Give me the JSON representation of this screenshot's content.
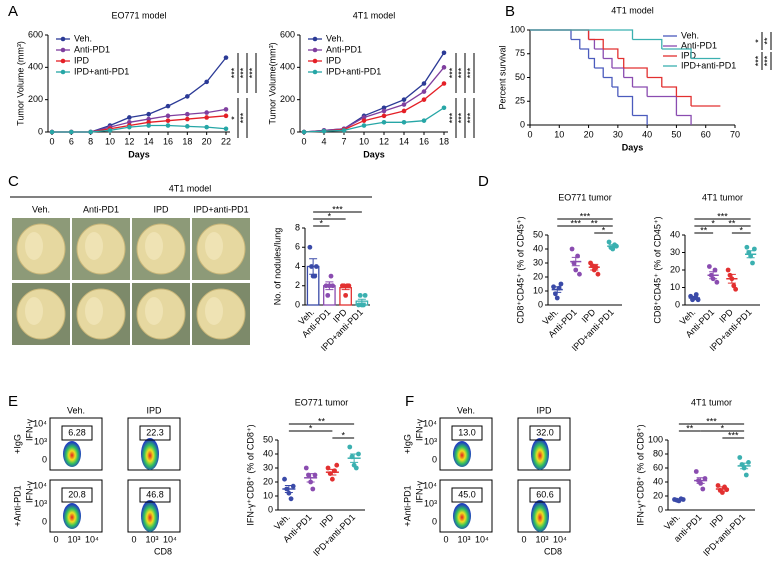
{
  "panels": {
    "letters": [
      "A",
      "B",
      "C",
      "D",
      "E",
      "F"
    ]
  },
  "photo": {
    "title": "4T1 model",
    "labels": [
      "Veh.",
      "Anti-PD1",
      "IPD",
      "IPD+anti-PD1"
    ]
  },
  "flow": [
    {
      "columns": [
        "Veh.",
        "IPD"
      ],
      "rows": [
        "+IgG",
        "+Anti-PD1"
      ],
      "gates": [
        "6.28",
        "22.3",
        "20.8",
        "46.8"
      ],
      "y_label": "IFN-γ",
      "x_label": "CD8",
      "y_ticks": [
        "10⁴",
        "10³",
        "0"
      ],
      "x_ticks": [
        "0",
        "10³",
        "10⁴"
      ]
    },
    {
      "columns": [
        "Veh.",
        "IPD"
      ],
      "rows": [
        "+IgG",
        "+Anti-PD1"
      ],
      "gates": [
        "13.0",
        "32.0",
        "45.0",
        "60.6"
      ],
      "y_label": "IFN-γ",
      "x_label": "CD8",
      "y_ticks": [
        "10⁴",
        "10³",
        "0"
      ],
      "x_ticks": [
        "0",
        "10³",
        "10⁴"
      ]
    }
  ],
  "chart_data": [
    {
      "type": "line",
      "title": "EO771 model",
      "x_label": "Days",
      "y_label": "Tumor Volume (mm³)",
      "categories": [
        "0",
        "6",
        "8",
        "10",
        "12",
        "14",
        "16",
        "18",
        "20",
        "22"
      ],
      "series": [
        {
          "name": "Veh.",
          "color": "#2b3a96",
          "values": [
            0,
            0,
            0,
            40,
            90,
            110,
            160,
            220,
            310,
            460
          ]
        },
        {
          "name": "Anti-PD1",
          "color": "#7f3f9f",
          "values": [
            0,
            0,
            0,
            30,
            60,
            80,
            100,
            110,
            120,
            140
          ]
        },
        {
          "name": "IPD",
          "color": "#e41f26",
          "values": [
            0,
            0,
            0,
            20,
            40,
            60,
            70,
            80,
            90,
            100
          ]
        },
        {
          "name": "IPD+anti-PD1",
          "color": "#26a6a6",
          "values": [
            0,
            0,
            0,
            10,
            30,
            40,
            40,
            35,
            30,
            20
          ]
        }
      ],
      "ylim": [
        0,
        600
      ],
      "yticks": [
        0,
        200,
        400,
        600
      ],
      "annotations": [
        "***",
        "***",
        "***",
        "*",
        "***"
      ]
    },
    {
      "type": "line",
      "title": "4T1 model",
      "x_label": "Days",
      "y_label": "Tumor Volume(mm³)",
      "categories": [
        "0",
        "4",
        "7",
        "10",
        "12",
        "14",
        "16",
        "18"
      ],
      "series": [
        {
          "name": "Veh.",
          "color": "#2b3a96",
          "values": [
            0,
            10,
            20,
            100,
            150,
            200,
            300,
            490
          ]
        },
        {
          "name": "Anti-PD1",
          "color": "#7f3f9f",
          "values": [
            0,
            10,
            20,
            90,
            130,
            170,
            250,
            400
          ]
        },
        {
          "name": "IPD",
          "color": "#e41f26",
          "values": [
            0,
            5,
            15,
            70,
            100,
            130,
            200,
            300
          ]
        },
        {
          "name": "IPD+anti-PD1",
          "color": "#26a6a6",
          "values": [
            0,
            5,
            10,
            40,
            60,
            60,
            70,
            150
          ]
        }
      ],
      "ylim": [
        0,
        600
      ],
      "yticks": [
        0,
        200,
        400,
        600
      ],
      "annotations": [
        "***",
        "***",
        "***",
        "***",
        "***",
        "***"
      ]
    },
    {
      "type": "step",
      "title": "4T1 model",
      "x_label": "Days",
      "y_label": "Percent survival",
      "series": [
        {
          "name": "Veh.",
          "color": "#4b5bbd",
          "x": [
            0,
            14,
            17,
            20,
            22,
            25,
            28,
            30,
            35,
            40
          ],
          "values": [
            100,
            90,
            80,
            70,
            60,
            50,
            40,
            30,
            10,
            0
          ]
        },
        {
          "name": "Anti-PD1",
          "color": "#8a4cb0",
          "x": [
            0,
            20,
            22,
            25,
            28,
            32,
            35,
            40,
            50,
            55
          ],
          "values": [
            100,
            90,
            80,
            70,
            60,
            50,
            40,
            30,
            10,
            0
          ]
        },
        {
          "name": "IPD",
          "color": "#e23030",
          "x": [
            0,
            20,
            25,
            30,
            32,
            40,
            45,
            50,
            55,
            65
          ],
          "values": [
            100,
            90,
            80,
            70,
            60,
            50,
            40,
            30,
            20,
            20
          ]
        },
        {
          "name": "IPD+anti-PD1",
          "color": "#3bb0b0",
          "x": [
            0,
            35,
            45,
            55,
            65
          ],
          "values": [
            100,
            90,
            80,
            70,
            70
          ]
        }
      ],
      "xlim": [
        0,
        70
      ],
      "xticks": [
        0,
        10,
        20,
        30,
        40,
        50,
        60,
        70
      ],
      "ylim": [
        0,
        100
      ],
      "yticks": [
        0,
        25,
        50,
        75,
        100
      ],
      "annotations": [
        "*",
        "**",
        "***",
        "***"
      ]
    },
    {
      "type": "bar",
      "y_label": "No. of nodules/lung",
      "categories": [
        "Veh.",
        "Anti-PD1",
        "IPD",
        "IPD+anti-PD1"
      ],
      "colors": [
        "#3a4aa8",
        "#8a4cb0",
        "#e23030",
        "#3bb0b0"
      ],
      "values": [
        4,
        2,
        1.8,
        0.4
      ],
      "errors": [
        0.8,
        0.4,
        0.2,
        0.2
      ],
      "points": [
        [
          6,
          4,
          3,
          3,
          4
        ],
        [
          2,
          1,
          2,
          3,
          2
        ],
        [
          2,
          2,
          1,
          2,
          2
        ],
        [
          0,
          1,
          0,
          0,
          1
        ]
      ],
      "ylim": [
        0,
        8
      ],
      "yticks": [
        0,
        2,
        4,
        6,
        8
      ],
      "annotations": [
        "***",
        "*",
        "*"
      ]
    },
    {
      "type": "dot",
      "title": "EO771 tumor",
      "y_label": "CD8⁺CD45⁺ (% of CD45⁺)",
      "categories": [
        "Veh.",
        "Anti-PD1",
        "IPD",
        "IPD+anti-PD1"
      ],
      "colors": [
        "#3a4aa8",
        "#8a4cb0",
        "#e23030",
        "#3bb0b0"
      ],
      "values": [
        11,
        31,
        27,
        42
      ],
      "errors": [
        2,
        3,
        2,
        1
      ],
      "points": [
        [
          13,
          8,
          5,
          12,
          15
        ],
        [
          40,
          30,
          25,
          35,
          22
        ],
        [
          30,
          28,
          25,
          27,
          22
        ],
        [
          45,
          41,
          40,
          43,
          42
        ]
      ],
      "ylim": [
        0,
        50
      ],
      "yticks": [
        0,
        10,
        20,
        30,
        40,
        50
      ],
      "annotations": [
        "***",
        "***",
        "**",
        "*"
      ]
    },
    {
      "type": "dot",
      "title": "4T1 tumor",
      "y_label": "CD8⁺CD45⁺ (% of CD45⁺)",
      "categories": [
        "Veh.",
        "Anti-PD1",
        "IPD",
        "IPD+anti-PD1"
      ],
      "colors": [
        "#3a4aa8",
        "#8a4cb0",
        "#e23030",
        "#3bb0b0"
      ],
      "values": [
        4,
        17,
        15,
        29
      ],
      "errors": [
        0.6,
        2,
        2.5,
        2
      ],
      "points": [
        [
          5,
          3,
          4,
          6,
          3
        ],
        [
          22,
          17,
          15,
          20,
          13
        ],
        [
          20,
          17,
          15,
          11,
          9
        ],
        [
          33,
          30,
          28,
          24,
          32
        ]
      ],
      "ylim": [
        0,
        40
      ],
      "yticks": [
        0,
        10,
        20,
        30,
        40
      ],
      "annotations": [
        "***",
        "*",
        "**",
        "**",
        "*"
      ]
    },
    {
      "type": "dot",
      "title": "EO771 tumor",
      "y_label": "IFN-γ⁺CD8⁺ (% of CD8⁺)",
      "categories": [
        "Veh.",
        "Anti-PD1",
        "IPD",
        "IPD+anti-PD1"
      ],
      "colors": [
        "#3a4aa8",
        "#8a4cb0",
        "#e23030",
        "#3bb0b0"
      ],
      "values": [
        15,
        23,
        27,
        37
      ],
      "errors": [
        2.5,
        3,
        2,
        3
      ],
      "points": [
        [
          22,
          15,
          12,
          8,
          17
        ],
        [
          30,
          25,
          20,
          15,
          25
        ],
        [
          30,
          26,
          22,
          28,
          32
        ],
        [
          45,
          38,
          32,
          30,
          40
        ]
      ],
      "ylim": [
        0,
        50
      ],
      "yticks": [
        0,
        10,
        20,
        30,
        40,
        50
      ],
      "annotations": [
        "**",
        "*",
        "*"
      ]
    },
    {
      "type": "dot",
      "title": "4T1 tumor",
      "y_label": "IFN-γ⁺CD8⁺ (% of CD8⁺)",
      "categories": [
        "Veh.",
        "anti-PD1",
        "IPD",
        "IPD+anti-PD1"
      ],
      "colors": [
        "#3a4aa8",
        "#8a4cb0",
        "#e23030",
        "#3bb0b0"
      ],
      "values": [
        15,
        42,
        30,
        63
      ],
      "errors": [
        1,
        4,
        3,
        4
      ],
      "points": [
        [
          15,
          14,
          13,
          16,
          15
        ],
        [
          55,
          42,
          38,
          30,
          45
        ],
        [
          35,
          28,
          25,
          33,
          29
        ],
        [
          75,
          65,
          60,
          50,
          68
        ]
      ],
      "ylim": [
        0,
        100
      ],
      "yticks": [
        0,
        20,
        40,
        60,
        80,
        100
      ],
      "annotations": [
        "***",
        "**",
        "*",
        "***"
      ]
    }
  ]
}
